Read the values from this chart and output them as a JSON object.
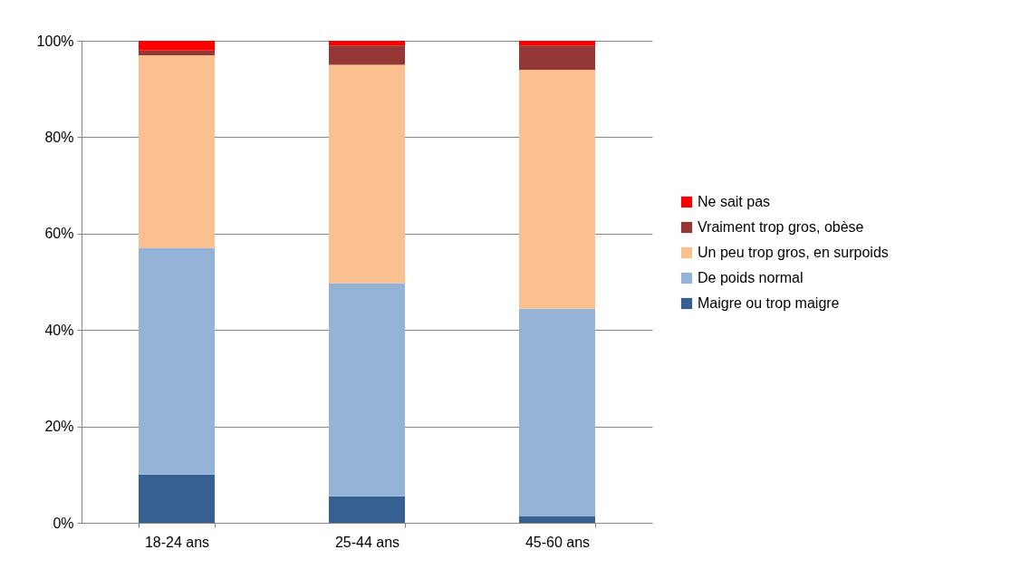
{
  "chart_data": {
    "type": "bar",
    "stacked": true,
    "categories": [
      "18-24 ans",
      "25-44 ans",
      "45-60 ans"
    ],
    "series": [
      {
        "name": "Maigre ou trop maigre",
        "color": "#376092",
        "values": [
          10,
          5.5,
          1.3
        ]
      },
      {
        "name": "De poids normal",
        "color": "#95b3d7",
        "values": [
          47,
          44.2,
          43.1
        ]
      },
      {
        "name": "Un peu trop gros, en surpoids",
        "color": "#fac090",
        "values": [
          40,
          45.3,
          49.6
        ]
      },
      {
        "name": "Vraiment trop gros, obèse",
        "color": "#953735",
        "values": [
          1,
          4,
          5
        ]
      },
      {
        "name": "Ne sait pas",
        "color": "#ff0000",
        "values": [
          2,
          1,
          1
        ]
      }
    ],
    "ylim": [
      0,
      100
    ],
    "yticks": [
      {
        "value": 0,
        "label": "0%"
      },
      {
        "value": 20,
        "label": "20%"
      },
      {
        "value": 40,
        "label": "40%"
      },
      {
        "value": 60,
        "label": "60%"
      },
      {
        "value": 80,
        "label": "80%"
      },
      {
        "value": 100,
        "label": "100%"
      }
    ],
    "grid": "y",
    "legend": "right"
  }
}
